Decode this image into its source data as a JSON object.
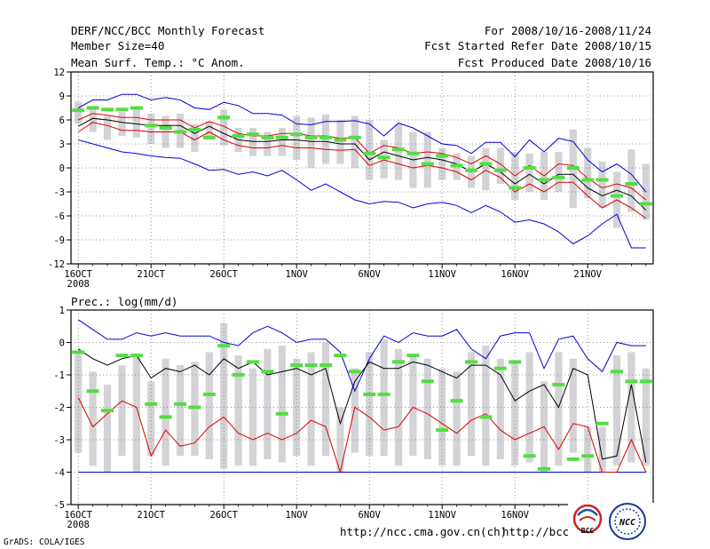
{
  "header": {
    "title": "DERF/NCC/BCC Monthly Forecast",
    "member_size": "Member Size=40",
    "variable": "Mean Surf. Temp.: °C Anom.",
    "period": "For 2008/10/16-2008/11/24",
    "start_date": "Fcst Started Refer Date 2008/10/15",
    "produced_date": "Fcst Produced Date 2008/10/16"
  },
  "footer": {
    "credit": "GrADS: COLA/IGES",
    "url1": "http://ncc.cma.gov.cn(ch)",
    "url2": "http://bcc.cma.gov.cn",
    "logo_bcc": "BCC",
    "logo_ncc": "NCC"
  },
  "colors": {
    "max": "#0000dd",
    "min": "#0000dd",
    "mean": "#000000",
    "lower": "#dd0000",
    "box": "#d3d3d7",
    "marker": "#55dd44"
  },
  "chart_data": [
    {
      "type": "line",
      "title": "Mean Surf. Temp.: °C Anom.",
      "x_ticks": [
        "16OCT",
        "21OCT",
        "26OCT",
        "1NOV",
        "6NOV",
        "11NOV",
        "16NOV",
        "21NOV"
      ],
      "x_tick_days": [
        1,
        6,
        11,
        16,
        21,
        26,
        31,
        36
      ],
      "year_label": "2008",
      "xlim": [
        0.5,
        40.5
      ],
      "y_ticks": [
        "12",
        "9",
        "6",
        "3",
        "0",
        "-3",
        "-6",
        "-9",
        "-12"
      ],
      "y_tick_values": [
        12,
        9,
        6,
        3,
        0,
        -3,
        -6,
        -9,
        -12
      ],
      "ylim": [
        -12,
        12
      ],
      "grid": true,
      "series": [
        {
          "name": "max",
          "values": [
            7.5,
            8.5,
            8.5,
            9.2,
            9.2,
            8.5,
            8.8,
            8.5,
            7.5,
            7.3,
            8.2,
            7.8,
            6.8,
            6.8,
            6.6,
            5.5,
            5.4,
            5.8,
            5.8,
            5.9,
            5.5,
            4.0,
            5.6,
            5.0,
            4.0,
            3.0,
            2.8,
            1.8,
            3.2,
            3.2,
            1.4,
            3.5,
            2.0,
            3.7,
            3.3,
            1.0,
            -0.5,
            0.5,
            -0.8,
            -3.0
          ]
        },
        {
          "name": "upper",
          "values": [
            6.0,
            6.8,
            6.6,
            6.3,
            6.3,
            6.0,
            6.0,
            6.0,
            5.0,
            5.8,
            5.2,
            4.3,
            4.0,
            4.0,
            4.3,
            4.3,
            4.0,
            4.0,
            3.7,
            3.8,
            1.8,
            2.8,
            2.5,
            1.8,
            2.0,
            1.8,
            1.3,
            0.5,
            1.5,
            0.5,
            -1.0,
            0.3,
            -1.0,
            0.5,
            0.3,
            -1.3,
            -2.5,
            -2.0,
            -2.5,
            -4.0
          ]
        },
        {
          "name": "mean",
          "values": [
            5.2,
            6.2,
            6.0,
            5.7,
            5.5,
            5.3,
            5.3,
            5.3,
            4.3,
            5.2,
            4.3,
            3.5,
            3.3,
            3.3,
            3.5,
            3.5,
            3.3,
            3.3,
            3.0,
            3.0,
            1.0,
            2.0,
            1.5,
            1.0,
            1.3,
            1.0,
            0.5,
            -0.5,
            0.5,
            -0.5,
            -2.0,
            -0.8,
            -2.0,
            -0.8,
            -0.8,
            -2.5,
            -3.5,
            -2.8,
            -3.5,
            -5.3
          ]
        },
        {
          "name": "lower",
          "values": [
            4.5,
            5.7,
            5.3,
            4.7,
            4.7,
            4.5,
            4.5,
            4.5,
            3.5,
            4.5,
            3.5,
            2.8,
            2.5,
            2.5,
            2.8,
            2.5,
            2.5,
            2.3,
            2.2,
            2.3,
            0.3,
            1.0,
            0.5,
            0.0,
            0.3,
            0.0,
            -0.5,
            -1.5,
            -0.3,
            -1.2,
            -3.0,
            -2.0,
            -3.0,
            -1.8,
            -1.8,
            -3.5,
            -5.0,
            -4.0,
            -5.0,
            -6.3
          ]
        },
        {
          "name": "min",
          "values": [
            3.5,
            3.0,
            2.5,
            2.0,
            1.8,
            1.5,
            1.3,
            1.2,
            0.5,
            -0.3,
            -0.2,
            -0.8,
            -0.5,
            -1.0,
            -0.3,
            -1.5,
            -2.8,
            -2.0,
            -3.0,
            -4.0,
            -4.5,
            -4.2,
            -4.3,
            -5.0,
            -4.5,
            -4.3,
            -4.7,
            -5.6,
            -4.7,
            -5.5,
            -6.8,
            -6.5,
            -7.0,
            -8.0,
            -9.5,
            -8.5,
            -7.0,
            -5.8,
            -10.0,
            -10.0
          ]
        },
        {
          "name": "box_top",
          "values": [
            8.3,
            7.5,
            6.5,
            7.0,
            7.5,
            6.8,
            6.5,
            6.8,
            5.5,
            5.8,
            7.3,
            5.0,
            5.0,
            4.5,
            5.0,
            6.5,
            6.3,
            6.7,
            6.0,
            6.5,
            6.0,
            3.5,
            5.5,
            4.5,
            4.5,
            2.5,
            1.8,
            1.5,
            2.5,
            2.5,
            2.0,
            1.8,
            2.0,
            2.0,
            4.8,
            2.5,
            0.8,
            -0.5,
            2.3,
            0.5
          ]
        },
        {
          "name": "box_bottom",
          "values": [
            5.5,
            4.5,
            3.5,
            4.0,
            3.8,
            3.0,
            2.5,
            2.5,
            2.0,
            3.5,
            2.8,
            2.0,
            1.5,
            1.5,
            1.5,
            1.0,
            0.0,
            0.5,
            0.5,
            0.0,
            -1.5,
            -1.3,
            -1.5,
            -2.5,
            -2.5,
            -1.5,
            -1.5,
            -2.5,
            -2.8,
            -2.0,
            -4.0,
            -3.0,
            -4.0,
            -3.0,
            -5.0,
            -3.8,
            -5.0,
            -7.5,
            -5.5,
            -6.5
          ]
        },
        {
          "name": "marker",
          "values": [
            7.2,
            7.5,
            7.3,
            7.3,
            7.5,
            5.3,
            5.0,
            4.5,
            4.8,
            3.8,
            6.3,
            4.0,
            4.2,
            3.8,
            3.8,
            4.2,
            3.8,
            3.8,
            3.5,
            3.8,
            1.8,
            1.3,
            2.3,
            1.8,
            0.5,
            1.5,
            0.3,
            -0.3,
            0.5,
            -0.3,
            -2.5,
            0.0,
            -1.5,
            -1.2,
            0.0,
            -1.5,
            -1.5,
            -3.5,
            -2.0,
            -4.5
          ]
        }
      ]
    },
    {
      "type": "line",
      "title": "Prec.: log(mm/d)",
      "x_ticks": [
        "16OCT",
        "21OCT",
        "26OCT",
        "1NOV",
        "6NOV",
        "11NOV",
        "16NOV",
        "21NOV"
      ],
      "x_tick_days": [
        1,
        6,
        11,
        16,
        21,
        26,
        31,
        36
      ],
      "year_label": "2008",
      "xlim": [
        0.5,
        40.5
      ],
      "y_ticks": [
        "1",
        "0",
        "-1",
        "-2",
        "-3",
        "-4",
        "-5"
      ],
      "y_tick_values": [
        1,
        0,
        -1,
        -2,
        -3,
        -4,
        -5
      ],
      "ylim": [
        -5,
        1
      ],
      "grid": true,
      "series": [
        {
          "name": "max",
          "values": [
            0.7,
            0.4,
            0.1,
            0.1,
            0.3,
            0.2,
            0.3,
            0.2,
            0.2,
            0.2,
            0.0,
            -0.1,
            0.3,
            0.5,
            0.3,
            0.0,
            0.1,
            0.1,
            -0.3,
            -1.5,
            -0.5,
            0.2,
            0.0,
            0.3,
            0.2,
            0.2,
            0.4,
            -0.2,
            -0.5,
            0.2,
            0.3,
            0.3,
            -0.8,
            0.1,
            0.2,
            -0.5,
            -0.9,
            0.0,
            -0.1,
            -0.1
          ]
        },
        {
          "name": "mean",
          "values": [
            -0.2,
            -0.5,
            -0.7,
            -0.5,
            -0.4,
            -1.1,
            -0.8,
            -0.9,
            -0.7,
            -1.0,
            -0.5,
            -0.8,
            -0.6,
            -1.0,
            -0.9,
            -0.8,
            -1.0,
            -0.8,
            -2.5,
            -1.2,
            -0.6,
            -0.8,
            -0.8,
            -0.6,
            -0.7,
            -0.9,
            -1.1,
            -0.7,
            -0.7,
            -1.0,
            -1.8,
            -1.5,
            -1.3,
            -2.0,
            -0.8,
            -1.0,
            -3.6,
            -3.5,
            -1.3,
            -3.7
          ]
        },
        {
          "name": "lower",
          "values": [
            -1.7,
            -2.6,
            -2.2,
            -1.8,
            -2.0,
            -3.5,
            -2.7,
            -3.2,
            -3.1,
            -2.6,
            -2.3,
            -2.8,
            -3.0,
            -2.8,
            -3.0,
            -2.8,
            -2.4,
            -2.6,
            -4.0,
            -2.0,
            -2.3,
            -2.7,
            -2.6,
            -2.0,
            -2.2,
            -2.5,
            -2.8,
            -2.4,
            -2.2,
            -2.7,
            -3.0,
            -2.8,
            -2.6,
            -3.3,
            -2.5,
            -2.6,
            -4.0,
            -4.0,
            -3.0,
            -4.0
          ]
        },
        {
          "name": "min",
          "values": [
            -4.0,
            -4.0,
            -4.0,
            -4.0,
            -4.0,
            -4.0,
            -4.0,
            -4.0,
            -4.0,
            -4.0,
            -4.0,
            -4.0,
            -4.0,
            -4.0,
            -4.0,
            -4.0,
            -4.0,
            -4.0,
            -4.0,
            -4.0,
            -4.0,
            -4.0,
            -4.0,
            -4.0,
            -4.0,
            -4.0,
            -4.0,
            -4.0,
            -4.0,
            -4.0,
            -4.0,
            -4.0,
            -4.0,
            -4.0,
            -4.0,
            -4.0,
            -4.0,
            -4.0,
            -4.0,
            -4.0
          ]
        },
        {
          "name": "box_top",
          "values": [
            -0.3,
            -0.9,
            -1.3,
            -0.7,
            -0.4,
            -1.2,
            -0.5,
            -0.7,
            -0.6,
            -0.3,
            0.6,
            -0.4,
            -0.8,
            -0.2,
            -0.1,
            -0.5,
            -0.3,
            0.0,
            -2.0,
            -0.8,
            -0.3,
            0.1,
            -0.2,
            -0.4,
            -0.5,
            -0.8,
            -0.9,
            -0.3,
            -0.1,
            -0.5,
            -0.6,
            -0.3,
            -1.2,
            -0.3,
            -0.5,
            -2.6,
            -2.6,
            -0.4,
            -0.3,
            -0.8
          ]
        },
        {
          "name": "box_bottom",
          "values": [
            -3.4,
            -3.8,
            -4.0,
            -3.5,
            -4.0,
            -3.5,
            -3.8,
            -3.5,
            -3.5,
            -3.6,
            -3.9,
            -3.8,
            -3.8,
            -3.6,
            -3.7,
            -3.5,
            -3.8,
            -3.5,
            -4.0,
            -3.4,
            -3.5,
            -3.5,
            -3.8,
            -3.5,
            -3.6,
            -3.8,
            -3.8,
            -3.5,
            -3.8,
            -3.6,
            -3.8,
            -3.7,
            -4.0,
            -3.8,
            -3.4,
            -4.0,
            -4.0,
            -3.8,
            -3.7,
            -3.8
          ]
        },
        {
          "name": "marker",
          "values": [
            -0.3,
            -1.5,
            -2.1,
            -0.4,
            -0.4,
            -1.9,
            -2.3,
            -1.9,
            -2.0,
            -1.6,
            -0.1,
            -1.0,
            -0.6,
            -0.9,
            -2.2,
            -0.7,
            -0.7,
            -0.7,
            -0.4,
            -0.9,
            -1.6,
            -1.6,
            -0.6,
            -0.4,
            -1.2,
            -2.7,
            -1.8,
            -0.6,
            -2.3,
            -0.8,
            -0.6,
            -3.5,
            -3.9,
            -1.3,
            -3.6,
            -3.5,
            -2.5,
            -0.9,
            -1.2,
            -1.2
          ]
        }
      ]
    }
  ]
}
